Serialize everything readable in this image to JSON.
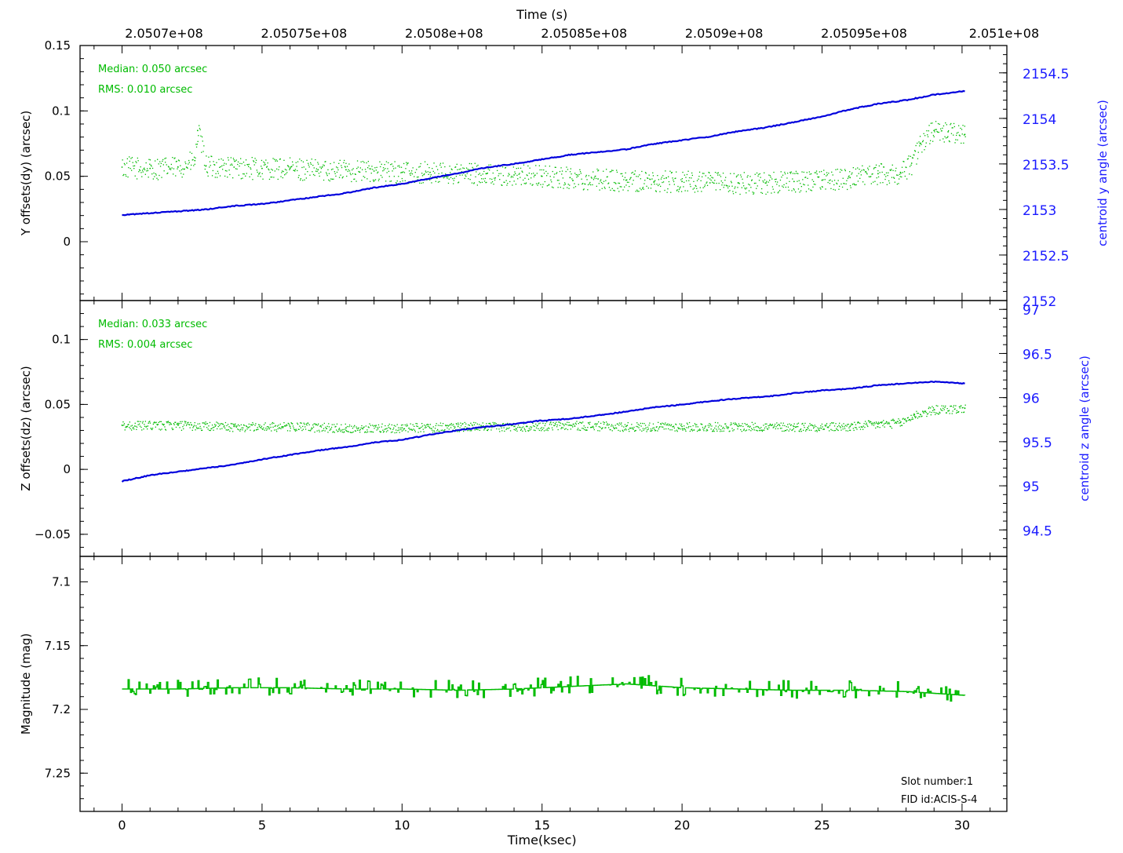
{
  "chart_data": [
    {
      "type": "line",
      "panel": "y-offsets",
      "top_axis": {
        "title": "Time (s)",
        "tick_labels": [
          "2.0507e+08",
          "2.05075e+08",
          "2.0508e+08",
          "2.05085e+08",
          "2.0509e+08",
          "2.05095e+08",
          "2.051e+08"
        ],
        "tick_values_ksec": [
          1.5,
          6.5,
          11.5,
          16.5,
          21.5,
          26.5,
          31.5
        ]
      },
      "ylabel": "Y offsets(dy) (arcsec)",
      "ylim": [
        -0.045,
        0.15
      ],
      "yticks": [
        0,
        0.05,
        0.1,
        0.15
      ],
      "ytick_labels": [
        "0",
        "0.05",
        "0.1",
        "0.15"
      ],
      "y2label": "centroid y angle (arcsec)",
      "y2lim": [
        2152,
        2154.8
      ],
      "y2ticks": [
        2152,
        2152.5,
        2153,
        2153.5,
        2154,
        2154.5
      ],
      "y2tick_labels": [
        "2152",
        "2152.5",
        "2153",
        "2153.5",
        "2154",
        "2154.5"
      ],
      "annotations": [
        "Median: 0.050 arcsec",
        "RMS: 0.010 arcsec"
      ],
      "series": [
        {
          "axis": "left",
          "color": "#00bb00",
          "style": "dots",
          "x": [
            0,
            1,
            2,
            2.6,
            2.7,
            3,
            4,
            5,
            6,
            7,
            8,
            9,
            10,
            11,
            12,
            13,
            14,
            15,
            16,
            17,
            18,
            19,
            20,
            21,
            22,
            23,
            24,
            25,
            26,
            27,
            27.8,
            28.2,
            28.5,
            29,
            29.5,
            30.1
          ],
          "y": [
            0.057,
            0.056,
            0.057,
            0.062,
            0.085,
            0.058,
            0.057,
            0.056,
            0.056,
            0.055,
            0.055,
            0.054,
            0.053,
            0.053,
            0.052,
            0.052,
            0.051,
            0.05,
            0.049,
            0.048,
            0.047,
            0.046,
            0.046,
            0.045,
            0.045,
            0.045,
            0.046,
            0.047,
            0.049,
            0.052,
            0.053,
            0.06,
            0.075,
            0.085,
            0.084,
            0.082
          ]
        },
        {
          "axis": "right",
          "color": "#0000dd",
          "style": "line",
          "x": [
            0,
            1,
            2,
            3,
            4,
            5,
            6,
            7,
            8,
            9,
            10,
            11,
            12,
            13,
            14,
            15,
            16,
            17,
            18,
            19,
            20,
            21,
            22,
            23,
            24,
            25,
            26,
            27,
            28,
            29,
            30.1
          ],
          "y": [
            2152.94,
            2152.96,
            2152.98,
            2153.0,
            2153.04,
            2153.06,
            2153.1,
            2153.14,
            2153.18,
            2153.24,
            2153.28,
            2153.34,
            2153.4,
            2153.46,
            2153.5,
            2153.55,
            2153.6,
            2153.63,
            2153.66,
            2153.72,
            2153.76,
            2153.8,
            2153.86,
            2153.9,
            2153.96,
            2154.02,
            2154.1,
            2154.16,
            2154.2,
            2154.26,
            2154.3
          ]
        }
      ]
    },
    {
      "type": "line",
      "panel": "z-offsets",
      "ylabel": "Z offsets(dz) (arcsec)",
      "ylim": [
        -0.067,
        0.13
      ],
      "yticks": [
        -0.05,
        0,
        0.05,
        0.1
      ],
      "ytick_labels": [
        "−0.05",
        "0",
        "0.05",
        "0.1"
      ],
      "y2label": "centroid z angle (arcsec)",
      "y2lim": [
        94.2,
        97.1
      ],
      "y2ticks": [
        94.5,
        95,
        95.5,
        96,
        96.5,
        97
      ],
      "y2tick_labels": [
        "94.5",
        "95",
        "95.5",
        "96",
        "96.5",
        "97"
      ],
      "annotations": [
        "Median: 0.033 arcsec",
        "RMS: 0.004 arcsec"
      ],
      "series": [
        {
          "axis": "left",
          "color": "#00bb00",
          "style": "dots",
          "x": [
            0,
            2,
            4,
            6,
            8,
            10,
            12,
            14,
            16,
            18,
            20,
            22,
            24,
            26,
            27,
            27.8,
            28.3,
            29,
            30.1
          ],
          "y": [
            0.034,
            0.034,
            0.033,
            0.033,
            0.032,
            0.032,
            0.033,
            0.033,
            0.034,
            0.033,
            0.033,
            0.033,
            0.033,
            0.033,
            0.035,
            0.036,
            0.042,
            0.046,
            0.047
          ]
        },
        {
          "axis": "right",
          "color": "#0000dd",
          "style": "line",
          "x": [
            0,
            1,
            2,
            3,
            4,
            5,
            6,
            7,
            8,
            9,
            10,
            11,
            12,
            13,
            14,
            15,
            16,
            17,
            18,
            19,
            20,
            21,
            22,
            23,
            24,
            25,
            26,
            27,
            28,
            29,
            30.1
          ],
          "y": [
            95.05,
            95.12,
            95.16,
            95.2,
            95.24,
            95.3,
            95.35,
            95.4,
            95.44,
            95.49,
            95.52,
            95.58,
            95.63,
            95.67,
            95.7,
            95.74,
            95.76,
            95.8,
            95.84,
            95.89,
            95.92,
            95.96,
            95.99,
            96.01,
            96.05,
            96.08,
            96.1,
            96.14,
            96.16,
            96.18,
            96.16
          ]
        }
      ]
    },
    {
      "type": "line",
      "panel": "magnitude",
      "xlabel": "Time(ksec)",
      "xlim": [
        -1.5,
        31.6
      ],
      "xticks": [
        0,
        5,
        10,
        15,
        20,
        25,
        30
      ],
      "xtick_labels": [
        "0",
        "5",
        "10",
        "15",
        "20",
        "25",
        "30"
      ],
      "ylabel": "Magnitude (mag)",
      "ylim": [
        7.28,
        7.08
      ],
      "yticks": [
        7.1,
        7.15,
        7.2,
        7.25
      ],
      "ytick_labels": [
        "7.1",
        "7.15",
        "7.2",
        "7.25"
      ],
      "annotations": [
        "Slot number:1",
        "FID id:ACIS-S-4"
      ],
      "series": [
        {
          "axis": "left",
          "color": "#00bb00",
          "style": "steps",
          "x": [
            0,
            2,
            4,
            6,
            8,
            10,
            12,
            14,
            16,
            18,
            20,
            22,
            24,
            26,
            28,
            30.1
          ],
          "y": [
            7.184,
            7.184,
            7.183,
            7.183,
            7.184,
            7.184,
            7.185,
            7.184,
            7.182,
            7.18,
            7.183,
            7.184,
            7.185,
            7.185,
            7.186,
            7.189
          ]
        }
      ]
    }
  ]
}
